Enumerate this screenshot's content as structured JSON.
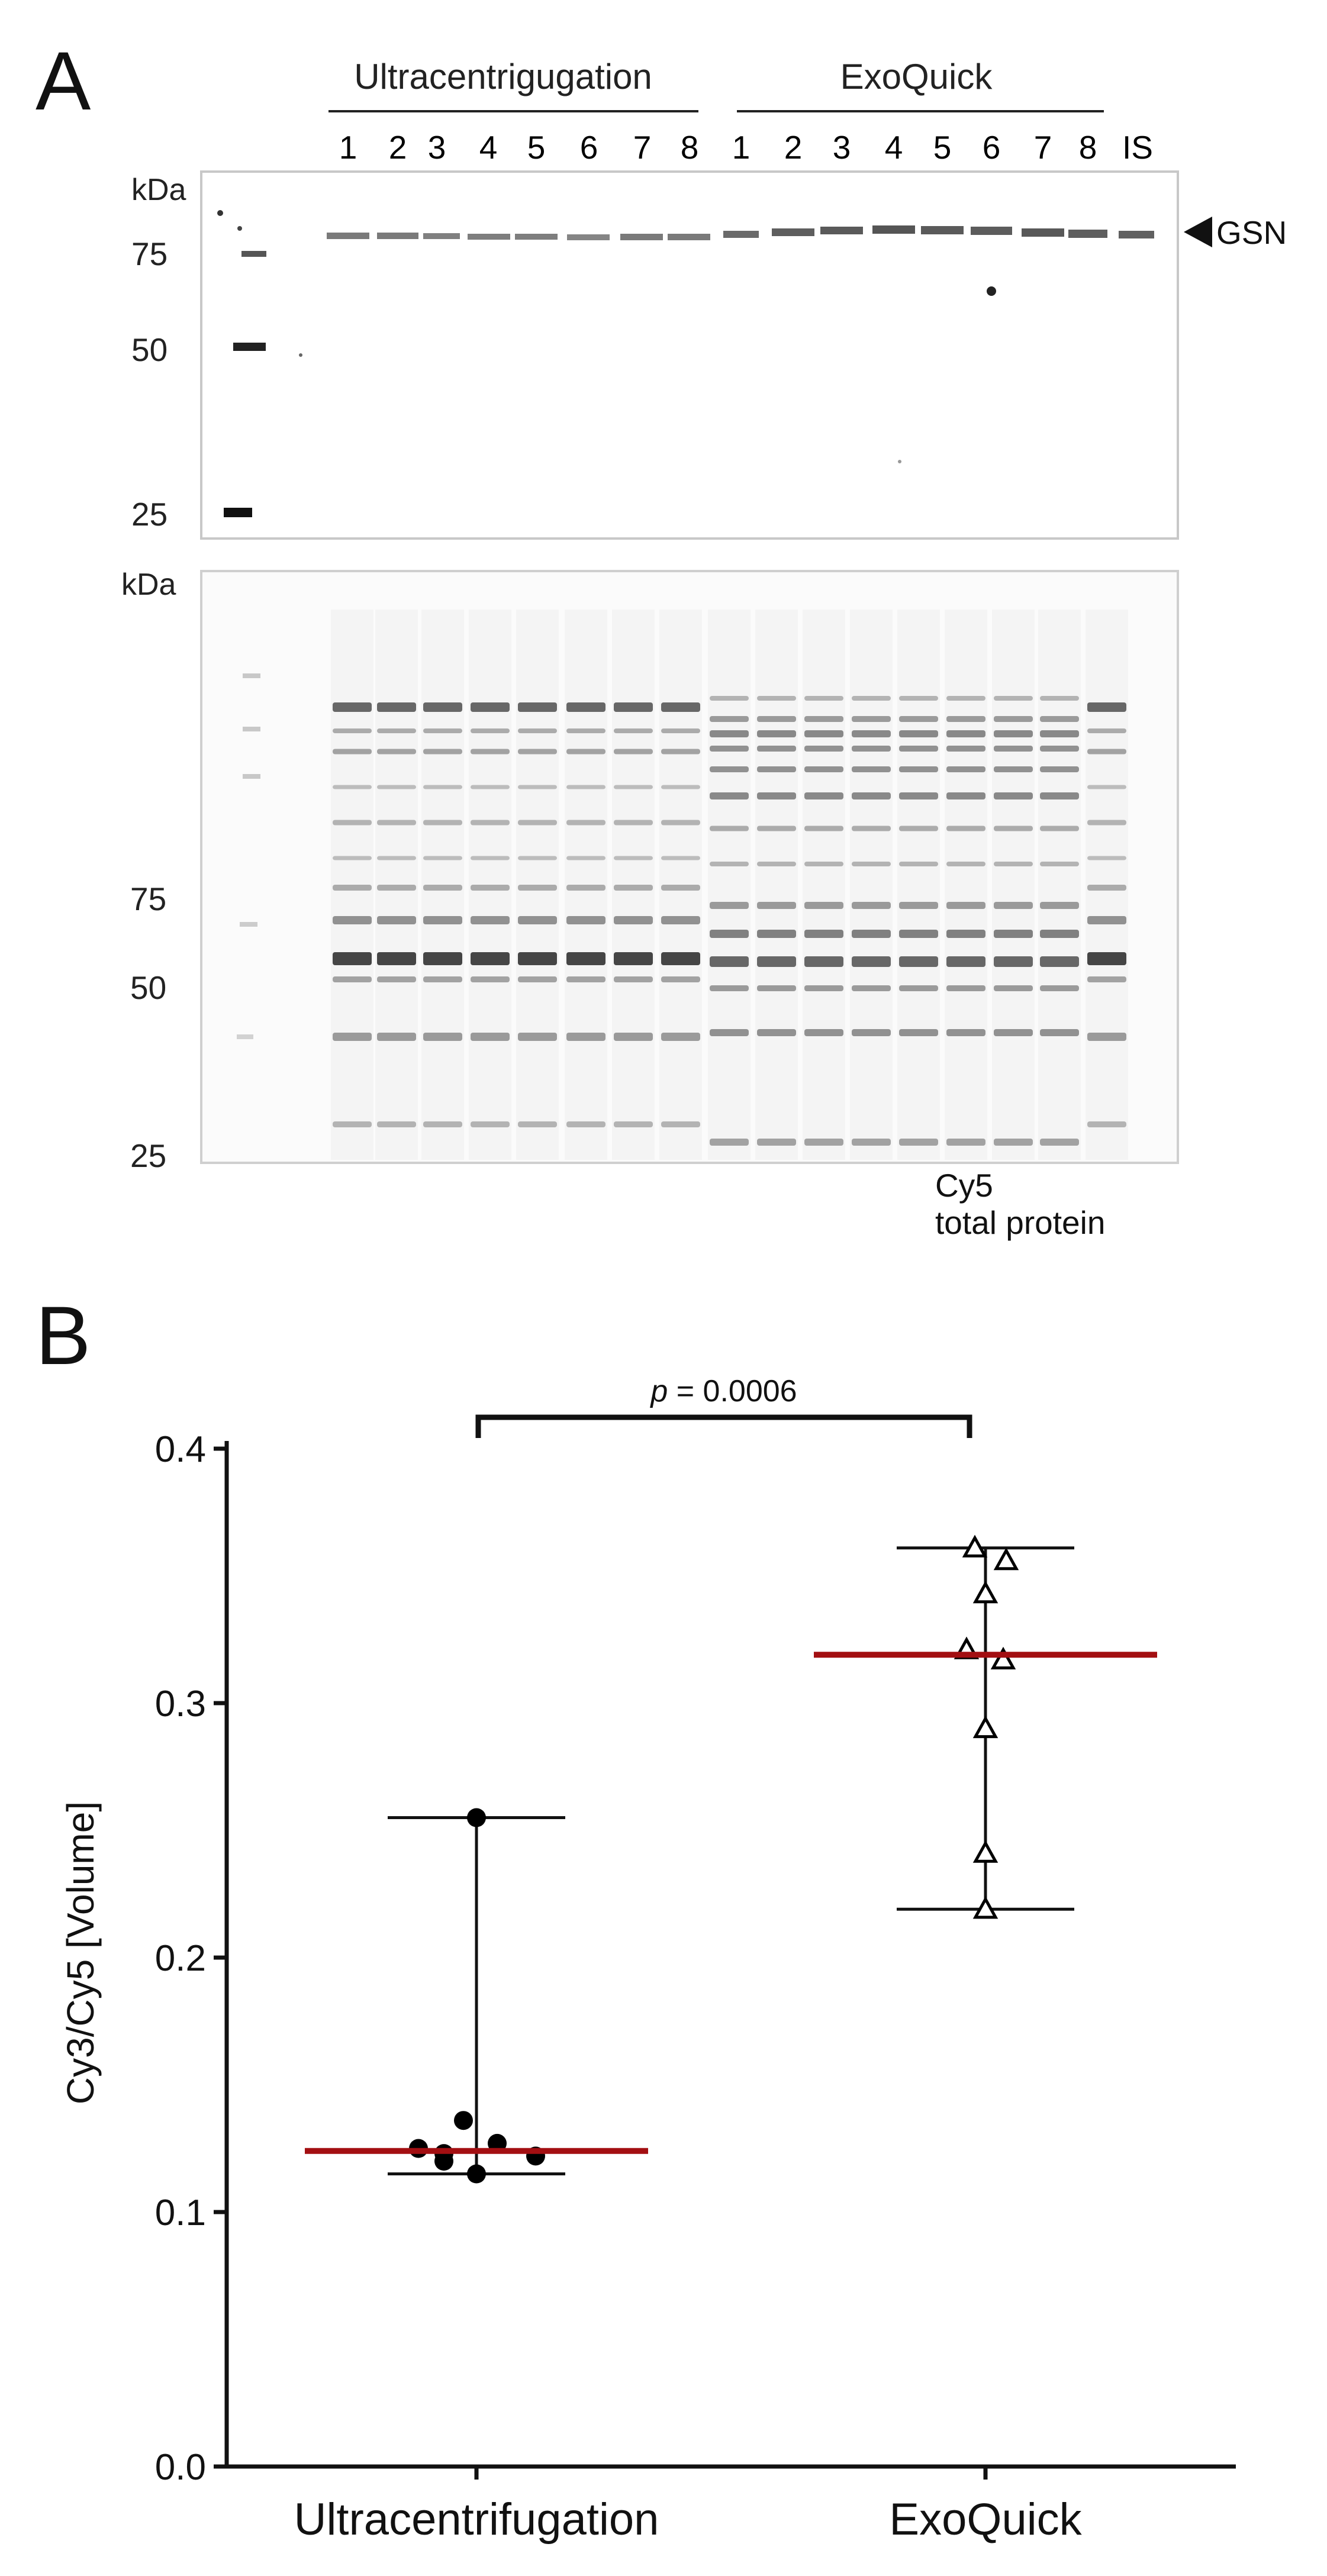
{
  "panel_a": {
    "letter": "A",
    "groups": [
      {
        "label": "Ultracentrigugation",
        "lanes": [
          "1",
          "2",
          "3",
          "4",
          "5",
          "6",
          "7",
          "8"
        ]
      },
      {
        "label": "ExoQuick",
        "lanes": [
          "1",
          "2",
          "3",
          "4",
          "5",
          "6",
          "7",
          "8"
        ]
      }
    ],
    "extra_lane": "IS",
    "western_blot": {
      "unit": "kDa",
      "markers": [
        "75",
        "50",
        "25"
      ],
      "band_label": "GSN"
    },
    "total_protein_gel": {
      "unit": "kDa",
      "markers": [
        "75",
        "50",
        "25"
      ],
      "stain_label_line1": "Cy5",
      "stain_label_line2": "total protein"
    }
  },
  "panel_b": {
    "letter": "B",
    "pvalue_symbol": "p",
    "pvalue_text": " = 0.0006"
  },
  "chart_data": {
    "type": "scatter",
    "title": "",
    "xlabel": "",
    "ylabel": "Cy3/Cy5 [Volume]",
    "categories": [
      "Ultracentrifugation",
      "ExoQuick"
    ],
    "ylim": [
      0.0,
      0.4
    ],
    "yticks": [
      "0.0",
      "0.1",
      "0.2",
      "0.3",
      "0.4"
    ],
    "series": [
      {
        "name": "Ultracentrifugation",
        "marker": "filled-circle",
        "values": [
          0.255,
          0.136,
          0.127,
          0.125,
          0.123,
          0.122,
          0.12,
          0.115
        ],
        "median": 0.124,
        "min": 0.115,
        "max": 0.255,
        "median_color": "#a30f12"
      },
      {
        "name": "ExoQuick",
        "marker": "open-triangle",
        "values": [
          0.361,
          0.356,
          0.343,
          0.321,
          0.317,
          0.29,
          0.241,
          0.219
        ],
        "median": 0.319,
        "min": 0.219,
        "max": 0.361,
        "median_color": "#a30f12"
      }
    ]
  }
}
